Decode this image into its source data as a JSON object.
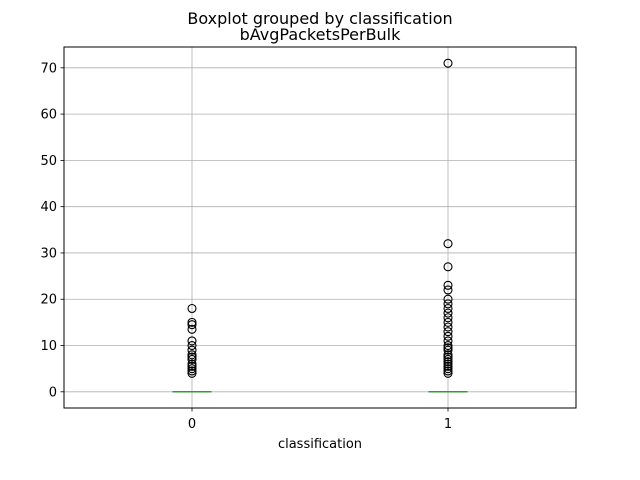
{
  "chart_data": {
    "type": "boxplot",
    "suptitle": "Boxplot grouped by classification",
    "title": "bAvgPacketsPerBulk",
    "xlabel": "classification",
    "ylabel": "",
    "categories": [
      "0",
      "1"
    ],
    "ylim": [
      -3.5,
      74.5
    ],
    "yticks": [
      0,
      10,
      20,
      30,
      40,
      50,
      60,
      70
    ],
    "grid": true,
    "groups": [
      {
        "category": "0",
        "q1": 0,
        "median": 0,
        "q3": 0,
        "whisker_low": 0,
        "whisker_high": 0,
        "outliers": [
          4,
          4.5,
          5,
          5.5,
          6,
          7,
          7.5,
          8,
          9,
          10,
          11,
          13.5,
          14.5,
          15,
          18
        ]
      },
      {
        "category": "1",
        "q1": 0,
        "median": 0,
        "q3": 0,
        "whisker_low": 0,
        "whisker_high": 0,
        "outliers": [
          4,
          4.5,
          5,
          5.5,
          6,
          6.5,
          7,
          7.5,
          8,
          9,
          9.5,
          10,
          11,
          12,
          13,
          14,
          15,
          16,
          17,
          18,
          19,
          20,
          22,
          23,
          27,
          32,
          71
        ]
      }
    ],
    "colors": {
      "box": "#1f77b4",
      "median": "#2ca02c",
      "whisker": "#000000",
      "outlier_edge": "#000000",
      "grid": "#b0b0b0"
    }
  }
}
